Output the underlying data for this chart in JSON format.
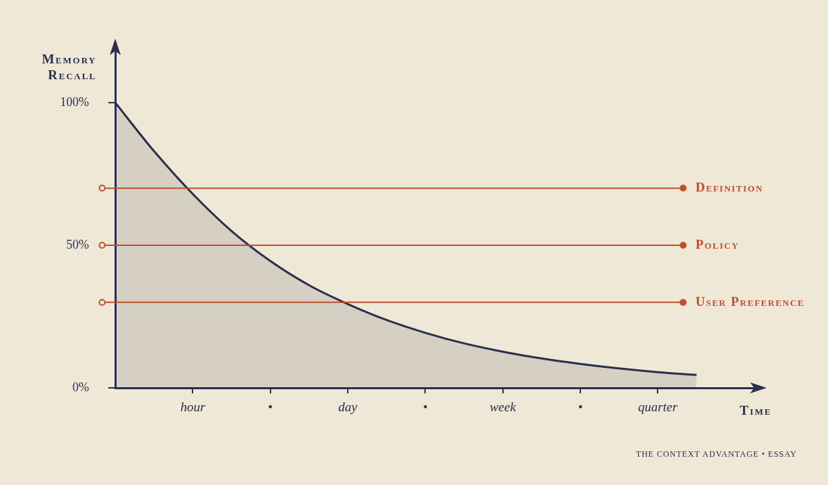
{
  "chart_data": {
    "type": "area",
    "xlabel": "Time",
    "ylabel": "Memory Recall",
    "categories": [
      null,
      null,
      "hour",
      null,
      "•",
      null,
      "day",
      null,
      "•",
      null,
      "week",
      null,
      "•",
      null,
      "quarter",
      null
    ],
    "series": [
      {
        "color": "#2b2f4e",
        "values": [
          100,
          83,
          68,
          55,
          44.5,
          36,
          29.4,
          23.8,
          19.3,
          15.6,
          12.7,
          10.3,
          8.4,
          6.8,
          5.5,
          4.5
        ]
      }
    ],
    "ylim": [
      0,
      121
    ],
    "yticks": [
      {
        "value": 0,
        "label": "0%"
      },
      {
        "value": 50,
        "label": "50%"
      },
      {
        "value": 100,
        "label": "100%"
      }
    ],
    "ref_lines": [
      {
        "axis": "y",
        "value": 70,
        "label": "Definition",
        "color": "#c0502e"
      },
      {
        "axis": "y",
        "value": 50,
        "label": "Policy",
        "color": "#c0502e"
      },
      {
        "axis": "y",
        "value": 30,
        "label": "User Preference",
        "color": "#c0502e"
      }
    ],
    "annotations": [
      "THE CONTEXT ADVANTAGE • ESSAY"
    ],
    "grid": false,
    "legend": false,
    "marker": "none",
    "line_style": "solid"
  }
}
